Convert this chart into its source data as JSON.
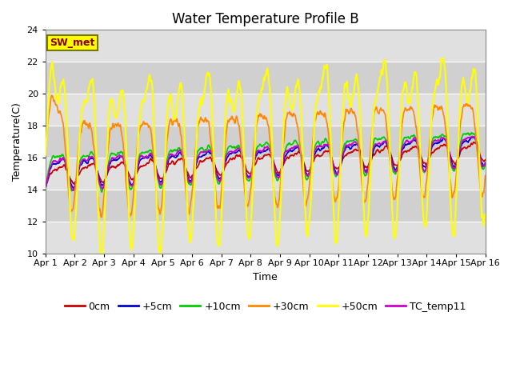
{
  "title": "Water Temperature Profile B",
  "xlabel": "Time",
  "ylabel": "Temperature(C)",
  "ylim": [
    10,
    24
  ],
  "xlim": [
    0,
    15
  ],
  "xtick_labels": [
    "Apr 1",
    "Apr 2",
    "Apr 3",
    "Apr 4",
    "Apr 5",
    "Apr 6",
    "Apr 7",
    "Apr 8",
    "Apr 9",
    "Apr 10",
    "Apr 11",
    "Apr 12",
    "Apr 13",
    "Apr 14",
    "Apr 15",
    "Apr 16"
  ],
  "xtick_positions": [
    0,
    1,
    2,
    3,
    4,
    5,
    6,
    7,
    8,
    9,
    10,
    11,
    12,
    13,
    14,
    15
  ],
  "ytick_labels": [
    "10",
    "12",
    "14",
    "16",
    "18",
    "20",
    "22",
    "24"
  ],
  "ytick_positions": [
    10,
    12,
    14,
    16,
    18,
    20,
    22,
    24
  ],
  "line_colors": [
    "#cc0000",
    "#0000cc",
    "#00cc00",
    "#ff8800",
    "#ffff00",
    "#cc00cc"
  ],
  "line_labels": [
    "0cm",
    "+5cm",
    "+10cm",
    "+30cm",
    "+50cm",
    "TC_temp11"
  ],
  "line_widths": [
    1.2,
    1.2,
    1.2,
    1.2,
    1.5,
    1.2
  ],
  "annotation_text": "SW_met",
  "annotation_bg": "#ffff00",
  "annotation_text_color": "#880000",
  "annotation_border_color": "#777700",
  "bg_color": "#ffffff",
  "band_colors": [
    "#e0e0e0",
    "#d0d0d0"
  ],
  "grid_color": "#ffffff",
  "title_fontsize": 12,
  "axis_label_fontsize": 9,
  "tick_fontsize": 8,
  "legend_fontsize": 9
}
